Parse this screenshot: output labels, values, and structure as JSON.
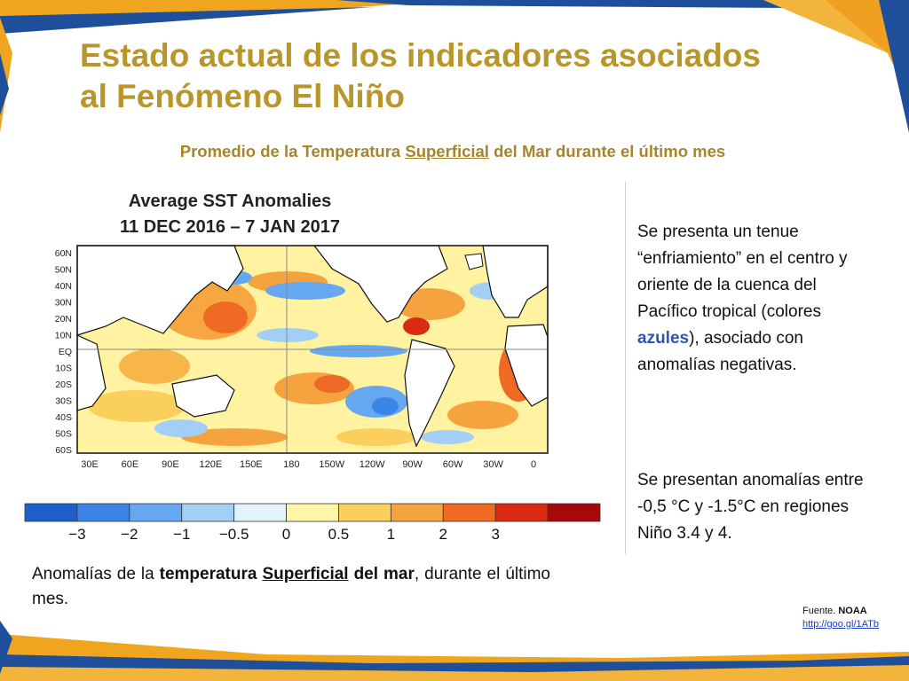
{
  "slide": {
    "title_line1": "Estado actual de los indicadores asociados",
    "title_line2": "al Fenómeno El Niño",
    "subtitle_before": "Promedio de la Temperatura ",
    "subtitle_underlined": "Superficial",
    "subtitle_after": " del Mar durante el último mes"
  },
  "map": {
    "heading_line1": "Average SST Anomalies",
    "heading_line2": "11 DEC 2016 – 7 JAN 2017",
    "lat_labels": [
      "60N",
      "50N",
      "40N",
      "30N",
      "20N",
      "10N",
      "EQ",
      "10S",
      "20S",
      "30S",
      "40S",
      "50S",
      "60S"
    ],
    "lon_labels": [
      "30E",
      "60E",
      "90E",
      "120E",
      "150E",
      "180",
      "150W",
      "120W",
      "90W",
      "60W",
      "30W",
      "0"
    ],
    "colorbar": {
      "colors": [
        "#1f5fc9",
        "#3a85e6",
        "#66a8ef",
        "#a3cff7",
        "#e2f4fb",
        "#fff5a8",
        "#fbcf5c",
        "#f5a33e",
        "#ef6a24",
        "#dc2a12",
        "#a6080b"
      ],
      "labels": [
        "−3",
        "−2",
        "−1",
        "−0.5",
        "0",
        "0.5",
        "1",
        "2",
        "3"
      ]
    }
  },
  "description": {
    "para1_before": "Se presenta un tenue “enfriamiento” en el centro y oriente de la cuenca del Pacífico tropical (colores ",
    "para1_highlight": "azules",
    "para1_after": "), asociado con anomalías negativas.",
    "para2": "Se presentan anomalías entre -0,5 °C y -1.5°C en regiones Niño 3.4 y 4."
  },
  "caption": {
    "part1": "Anomalías de la ",
    "bold1": "temperatura",
    "underlined": "Superficial",
    "bold2": "del mar",
    "part2": ", durante el último mes."
  },
  "source": {
    "label": "Fuente. ",
    "org": "NOAA",
    "link": "http://goo.gl/1ATb"
  },
  "colors": {
    "title": "#b8962c",
    "accent_orange": "#f0a020",
    "accent_blue": "#1f4f9a",
    "highlight_blue": "#2f55b4"
  }
}
